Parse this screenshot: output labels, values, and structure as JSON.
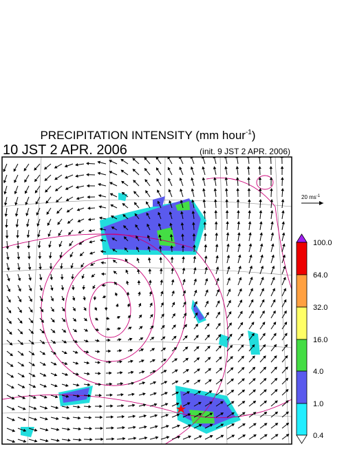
{
  "header": {
    "title": "PRECIPITATION INTENSITY (mm hour",
    "title_superscript": "-1",
    "title_close": ")",
    "valid_time": "10 JST 2 APR. 2006",
    "init_time": "(init. 9 JST 2 APR. 2006)"
  },
  "wind_scale": {
    "text": "20 ms",
    "superscript": "-1"
  },
  "colorbar": {
    "labels": [
      "100.0",
      "64.0",
      "32.0",
      "16.0",
      "4.0",
      "1.0",
      "0.4"
    ]
  }
}
